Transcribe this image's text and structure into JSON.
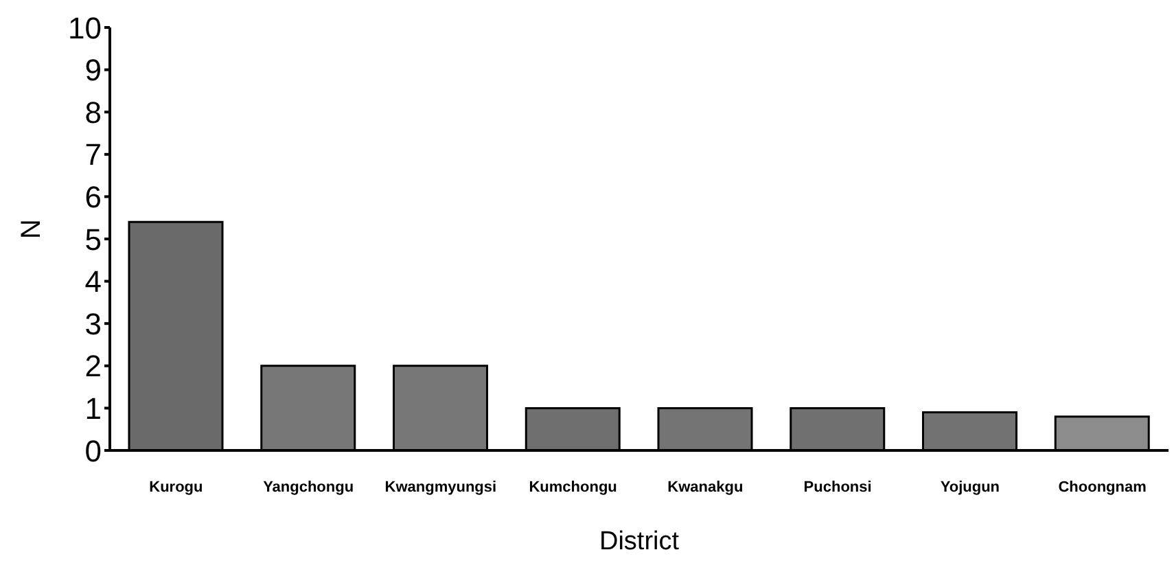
{
  "chart_data": {
    "type": "bar",
    "xlabel": "District",
    "ylabel": "N",
    "categories": [
      "Kurogu",
      "Yangchongu",
      "Kwangmyungsi",
      "Kumchongu",
      "Kwanakgu",
      "Puchonsi",
      "Yojugun",
      "Choongnam"
    ],
    "values": [
      5.4,
      2,
      2,
      1,
      1,
      1,
      0.9,
      0.8
    ],
    "colors": [
      "#6a6a6a",
      "#777777",
      "#777777",
      "#6e6e6e",
      "#747474",
      "#707070",
      "#727272",
      "#8c8c8c"
    ],
    "ylim": [
      0,
      10
    ],
    "yticks": [
      0,
      1,
      2,
      3,
      4,
      5,
      6,
      7,
      8,
      9,
      10
    ],
    "grid": false,
    "legend": false
  }
}
